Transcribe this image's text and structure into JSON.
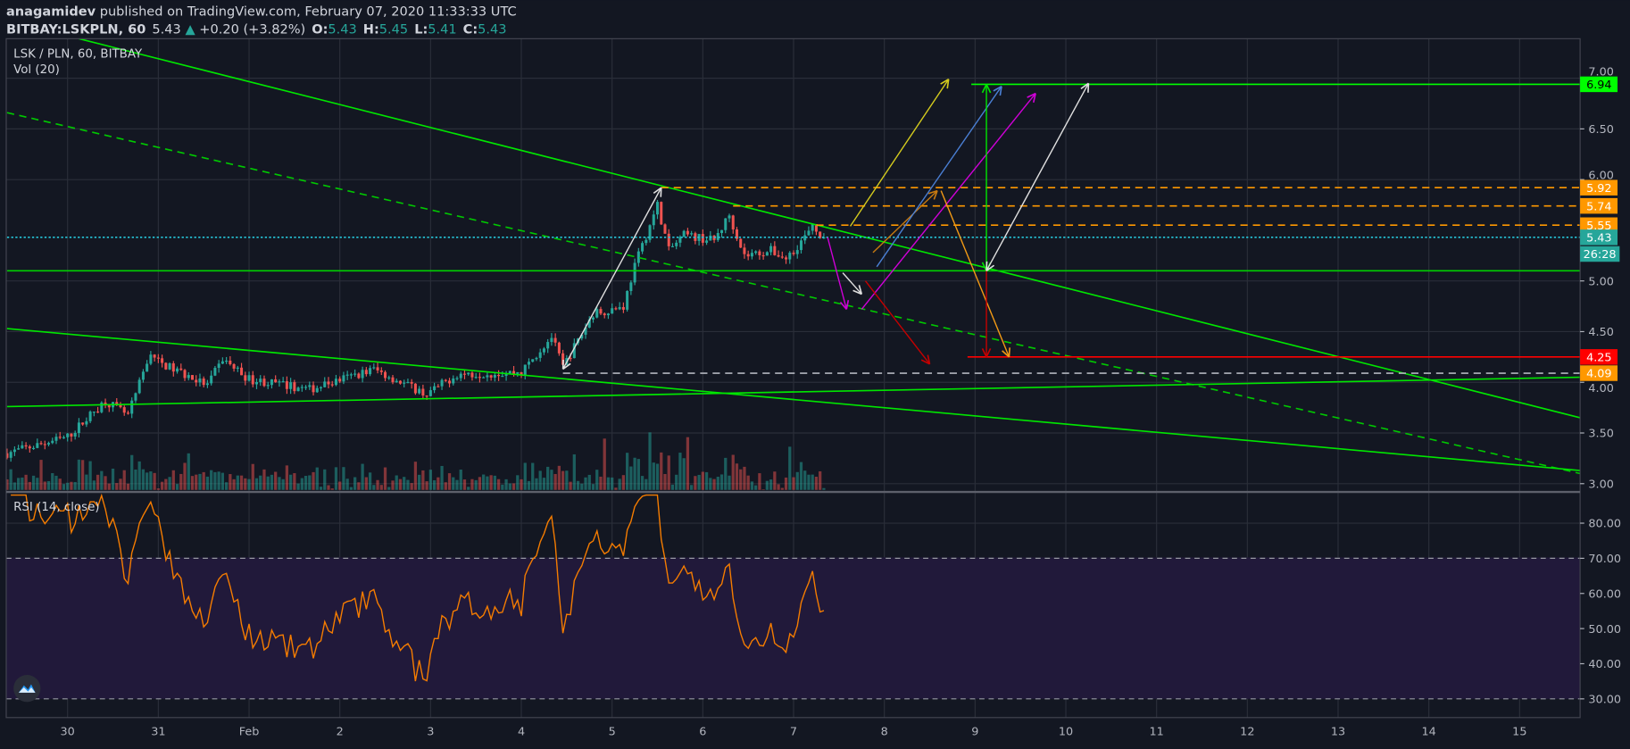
{
  "header": {
    "author": "anagamidev",
    "published": " published on TradingView.com, February 07, 2020 11:33:33 UTC",
    "symbol": "BITBAY:LSKPLN, 60",
    "last": "5.43",
    "change": "+0.20 (+3.82%)",
    "o_label": "O:",
    "o": "5.43",
    "h_label": "H:",
    "h": "5.45",
    "l_label": "L:",
    "l": "5.41",
    "c_label": "C:",
    "c": "5.43"
  },
  "legend": {
    "main": "LSK / PLN, 60, BITBAY",
    "volume": "Vol (20)",
    "rsi": "RSI (14, close)"
  },
  "icons": {
    "logo": "tradingview-logo-icon",
    "up": "triangle-up-icon"
  },
  "colors": {
    "background": "#131722",
    "up": "#26a69a",
    "down": "#ef5350",
    "rsi_line": "#f57c00",
    "rsi_band": "#21193a",
    "grid": "#2a2e39",
    "trend": "#00e600",
    "level_orange": "#ff9800",
    "level_red": "#ff0000"
  },
  "chart_data": {
    "type": "candlestick",
    "title": "LSK / PLN, 60, BITBAY",
    "interval": "60",
    "price_axis": {
      "range": [
        2.9,
        7.4
      ],
      "ticks": [
        "7.00",
        "6.50",
        "6.00",
        "5.00",
        "4.50",
        "4.00",
        "3.50",
        "3.00"
      ],
      "grid": true
    },
    "time_axis": {
      "ticks": [
        {
          "t": "2020-01-30T00:00",
          "label": "30"
        },
        {
          "t": "2020-01-31T00:00",
          "label": "31"
        },
        {
          "t": "2020-02-01T00:00",
          "label": "Feb"
        },
        {
          "t": "2020-02-02T00:00",
          "label": "2"
        },
        {
          "t": "2020-02-03T00:00",
          "label": "3"
        },
        {
          "t": "2020-02-04T00:00",
          "label": "4"
        },
        {
          "t": "2020-02-05T00:00",
          "label": "5"
        },
        {
          "t": "2020-02-06T00:00",
          "label": "6"
        },
        {
          "t": "2020-02-07T00:00",
          "label": "7"
        },
        {
          "t": "2020-02-08T00:00",
          "label": "8"
        },
        {
          "t": "2020-02-09T00:00",
          "label": "9"
        },
        {
          "t": "2020-02-10T00:00",
          "label": "10"
        },
        {
          "t": "2020-02-11T00:00",
          "label": "11"
        },
        {
          "t": "2020-02-12T00:00",
          "label": "12"
        },
        {
          "t": "2020-02-13T00:00",
          "label": "13"
        },
        {
          "t": "2020-02-14T00:00",
          "label": "14"
        },
        {
          "t": "2020-02-15T00:00",
          "label": "15"
        }
      ],
      "grid": true
    },
    "approx_close_path": [
      [
        "2020-01-29T08:00",
        3.3
      ],
      [
        "2020-01-30T00:00",
        3.46
      ],
      [
        "2020-01-30T10:00",
        3.82
      ],
      [
        "2020-01-30T16:00",
        3.67
      ],
      [
        "2020-01-30T22:00",
        4.3
      ],
      [
        "2020-01-31T00:00",
        4.2
      ],
      [
        "2020-01-31T13:00",
        3.97
      ],
      [
        "2020-01-31T17:00",
        4.23
      ],
      [
        "2020-02-01T00:00",
        4.03
      ],
      [
        "2020-02-01T16:00",
        3.93
      ],
      [
        "2020-02-02T09:00",
        4.13
      ],
      [
        "2020-02-02T23:00",
        3.88
      ],
      [
        "2020-02-03T07:00",
        4.08
      ],
      [
        "2020-02-04T00:00",
        4.1
      ],
      [
        "2020-02-04T08:00",
        4.45
      ],
      [
        "2020-02-04T11:00",
        4.15
      ],
      [
        "2020-02-04T19:00",
        4.68
      ],
      [
        "2020-02-05T03:00",
        4.75
      ],
      [
        "2020-02-05T06:00",
        5.15
      ],
      [
        "2020-02-05T12:00",
        5.75
      ],
      [
        "2020-02-05T15:00",
        5.3
      ],
      [
        "2020-02-05T19:00",
        5.45
      ],
      [
        "2020-02-06T03:00",
        5.4
      ],
      [
        "2020-02-06T07:00",
        5.65
      ],
      [
        "2020-02-06T11:00",
        5.25
      ],
      [
        "2020-02-06T18:00",
        5.3
      ],
      [
        "2020-02-06T22:00",
        5.22
      ],
      [
        "2020-02-07T05:00",
        5.52
      ],
      [
        "2020-02-07T08:00",
        5.43
      ]
    ],
    "price_labels": [
      {
        "value": "6.94",
        "bg": "#00ff00",
        "fg": "#000000"
      },
      {
        "value": "5.92",
        "bg": "#ff9800",
        "fg": "#ffffff"
      },
      {
        "value": "5.74",
        "bg": "#ff9800",
        "fg": "#ffffff"
      },
      {
        "value": "5.55",
        "bg": "#ff9800",
        "fg": "#ffffff"
      },
      {
        "value": "5.43",
        "bg": "#26a69a",
        "fg": "#ffffff"
      },
      {
        "value": "4.25",
        "bg": "#ff0000",
        "fg": "#ffffff"
      },
      {
        "value": "4.09",
        "bg": "#ff9800",
        "fg": "#ffffff"
      }
    ],
    "countdown": "26:28",
    "drawings": [
      {
        "name": "descending-trendline",
        "color": "#00e600",
        "from": [
          "2020-01-30T03:00",
          7.39
        ],
        "to": [
          "2020-02-15T16:00",
          3.65
        ]
      },
      {
        "name": "dashed-trendline",
        "color": "#00c800",
        "dash": true,
        "from": [
          "2020-01-29T08:00",
          6.66
        ],
        "to": [
          "2020-02-15T16:00",
          3.1
        ]
      },
      {
        "name": "wedge-upper-line",
        "color": "#00e600",
        "from": [
          "2020-01-29T08:00",
          4.53
        ],
        "to": [
          "2020-02-15T16:00",
          3.13
        ]
      },
      {
        "name": "rising-support-line",
        "color": "#00e600",
        "from": [
          "2020-01-29T08:00",
          3.76
        ],
        "to": [
          "2020-02-15T16:00",
          4.05
        ]
      },
      {
        "name": "support-5-10",
        "color": "#00d000",
        "from": [
          "2020-01-29T08:00",
          5.1
        ],
        "to": [
          "2020-02-15T16:00",
          5.1
        ]
      },
      {
        "name": "target-6-94",
        "color": "#00ff00",
        "from": [
          "2020-02-08T23:00",
          6.94
        ],
        "to": [
          "2020-02-15T16:00",
          6.94
        ]
      },
      {
        "name": "level-4-25",
        "color": "#ff0000",
        "from": [
          "2020-02-08T22:00",
          4.25
        ],
        "to": [
          "2020-02-15T16:00",
          4.25
        ]
      },
      {
        "name": "level-5-92",
        "color": "#ff9800",
        "dash": true,
        "from": [
          "2020-02-05T13:00",
          5.92
        ],
        "to": [
          "2020-02-15T16:00",
          5.92
        ]
      },
      {
        "name": "level-5-74",
        "color": "#ff9800",
        "dash": true,
        "from": [
          "2020-02-06T08:00",
          5.74
        ],
        "to": [
          "2020-02-15T16:00",
          5.74
        ]
      },
      {
        "name": "level-5-55",
        "color": "#ff9800",
        "dash": true,
        "from": [
          "2020-02-07T06:00",
          5.55
        ],
        "to": [
          "2020-02-15T16:00",
          5.55
        ]
      },
      {
        "name": "level-4-09",
        "color": "#b2b5be",
        "dash": true,
        "from": [
          "2020-02-04T11:00",
          4.09
        ],
        "to": [
          "2020-02-15T16:00",
          4.09
        ]
      },
      {
        "name": "last-price-line",
        "color": "#26c6da",
        "dot": true,
        "from": [
          "2020-01-29T08:00",
          5.43
        ],
        "to": [
          "2020-02-15T16:00",
          5.43
        ]
      },
      {
        "name": "white-rally-arrow",
        "color": "#e0e0e0",
        "heads": "both",
        "from": [
          "2020-02-04T11:00",
          4.13
        ],
        "to": [
          "2020-02-05T13:00",
          5.92
        ]
      },
      {
        "name": "white-small-arrow",
        "color": "#e0e0e0",
        "heads": "end",
        "from": [
          "2020-02-07T13:00",
          5.08
        ],
        "to": [
          "2020-02-07T18:00",
          4.87
        ]
      },
      {
        "name": "magenta-down-arrow",
        "color": "#d000d8",
        "heads": "end",
        "from": [
          "2020-02-07T09:00",
          5.43
        ],
        "to": [
          "2020-02-07T14:00",
          4.72
        ]
      },
      {
        "name": "magenta-up-arrow",
        "color": "#d000d8",
        "heads": "end",
        "from": [
          "2020-02-07T18:00",
          4.72
        ],
        "to": [
          "2020-02-09T16:00",
          6.85
        ]
      },
      {
        "name": "red-down-arrow",
        "color": "#c50000",
        "heads": "end",
        "from": [
          "2020-02-07T19:00",
          5.0
        ],
        "to": [
          "2020-02-08T12:00",
          4.18
        ]
      },
      {
        "name": "orange-up-arrow",
        "color": "#c77a10",
        "heads": "end",
        "from": [
          "2020-02-07T21:00",
          5.28
        ],
        "to": [
          "2020-02-08T14:00",
          5.89
        ]
      },
      {
        "name": "orange-down-arrow",
        "color": "#f29a15",
        "heads": "end",
        "from": [
          "2020-02-08T15:00",
          5.89
        ],
        "to": [
          "2020-02-09T09:00",
          4.25
        ]
      },
      {
        "name": "blue-up-arrow",
        "color": "#4a7fd4",
        "heads": "end",
        "from": [
          "2020-02-07T22:00",
          5.14
        ],
        "to": [
          "2020-02-09T07:00",
          6.92
        ]
      },
      {
        "name": "yellow-up-arrow",
        "color": "#d4cb1e",
        "heads": "end",
        "from": [
          "2020-02-07T15:00",
          5.54
        ],
        "to": [
          "2020-02-08T17:00",
          6.99
        ]
      },
      {
        "name": "green-range-arrow",
        "color": "#00e600",
        "heads": "both",
        "from": [
          "2020-02-09T03:00",
          5.1
        ],
        "to": [
          "2020-02-09T03:00",
          6.94
        ]
      },
      {
        "name": "red-range-arrow",
        "color": "#c50000",
        "heads": "end",
        "from": [
          "2020-02-09T03:00",
          5.1
        ],
        "to": [
          "2020-02-09T03:00",
          4.25
        ]
      },
      {
        "name": "white-target-arrow",
        "color": "#e0e0e0",
        "heads": "both",
        "from": [
          "2020-02-09T03:00",
          5.1
        ],
        "to": [
          "2020-02-10T06:00",
          6.95
        ]
      }
    ],
    "rsi": {
      "period": 14,
      "source": "close",
      "ticks": [
        "80.00",
        "70.00",
        "60.00",
        "50.00",
        "40.00",
        "30.00"
      ],
      "overbought": 70,
      "oversold": 30,
      "range": [
        25,
        88
      ]
    }
  }
}
